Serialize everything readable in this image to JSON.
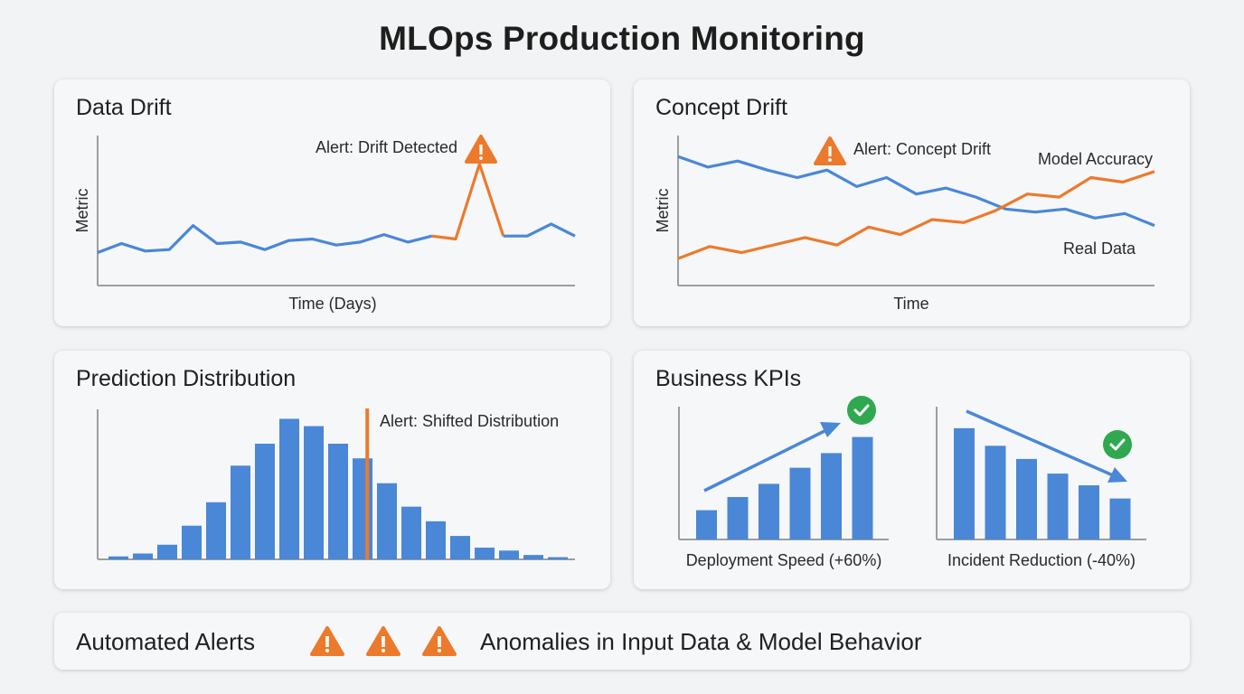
{
  "title": "MLOps Production Monitoring",
  "colors": {
    "blue": "#4a87d6",
    "orange": "#ec7a2c",
    "green": "#2fa84f",
    "axis": "#9e9e9e"
  },
  "icons": {
    "alert": "warning-triangle-icon",
    "ok": "check-circle-icon",
    "trend_up": "arrow-up-right-icon",
    "trend_down": "arrow-down-right-icon"
  },
  "chart_data": [
    {
      "type": "line",
      "title": "Data Drift",
      "xlabel": "Time (Days)",
      "ylabel": "Metric",
      "grid": false,
      "annotation": "Alert: Drift Detected",
      "ylim": [
        0,
        10
      ],
      "series": [
        {
          "values": [
            2.2,
            2.8,
            2.3,
            2.4,
            4.0,
            2.8,
            2.9,
            2.4,
            3.0,
            3.1,
            2.7,
            2.9,
            3.4,
            2.9,
            3.3,
            3.1,
            8.1,
            3.3,
            3.3,
            4.1,
            3.3
          ],
          "color": "#4a87d6",
          "highlight_range": [
            14,
            17
          ],
          "highlight_color": "#ec7a2c"
        }
      ]
    },
    {
      "type": "line",
      "title": "Concept Drift",
      "xlabel": "Time",
      "ylabel": "Metric",
      "grid": false,
      "annotation": "Alert: Concept Drift",
      "ylim": [
        0,
        10
      ],
      "series": [
        {
          "name": "Model Accuracy",
          "color": "#4a87d6",
          "values": [
            8.6,
            7.9,
            8.3,
            7.7,
            7.2,
            7.7,
            6.6,
            7.2,
            6.1,
            6.5,
            5.9,
            5.1,
            4.9,
            5.1,
            4.5,
            4.8,
            4.0
          ]
        },
        {
          "name": "Real Data",
          "color": "#ec7a2c",
          "values": [
            1.8,
            2.6,
            2.2,
            2.7,
            3.2,
            2.7,
            3.9,
            3.4,
            4.4,
            4.2,
            5.0,
            6.1,
            5.9,
            7.2,
            6.9,
            7.6
          ]
        }
      ]
    },
    {
      "type": "bar",
      "title": "Prediction Distribution",
      "grid": false,
      "annotation": "Alert: Shifted Distribution",
      "marker_index": 10.6,
      "marker_color": "#ec7a2c",
      "ylim": [
        0,
        100
      ],
      "values": [
        2,
        4,
        10,
        23,
        39,
        64,
        79,
        96,
        91,
        79,
        69,
        52,
        36,
        26,
        16,
        8,
        6,
        3,
        1.5
      ]
    },
    {
      "type": "bar",
      "title": "Business KPIs",
      "label": "Deployment Speed (+60%)",
      "trend": "up",
      "ylim": [
        0,
        100
      ],
      "values": [
        20,
        29,
        38,
        49,
        59,
        70
      ]
    },
    {
      "type": "bar",
      "label": "Incident Reduction (-40%)",
      "trend": "down",
      "ylim": [
        0,
        100
      ],
      "values": [
        76,
        64,
        55,
        45,
        37,
        28
      ]
    }
  ],
  "alerts": {
    "label": "Automated Alerts",
    "message": "Anomalies in Input Data & Model Behavior",
    "icon_count": 3
  }
}
